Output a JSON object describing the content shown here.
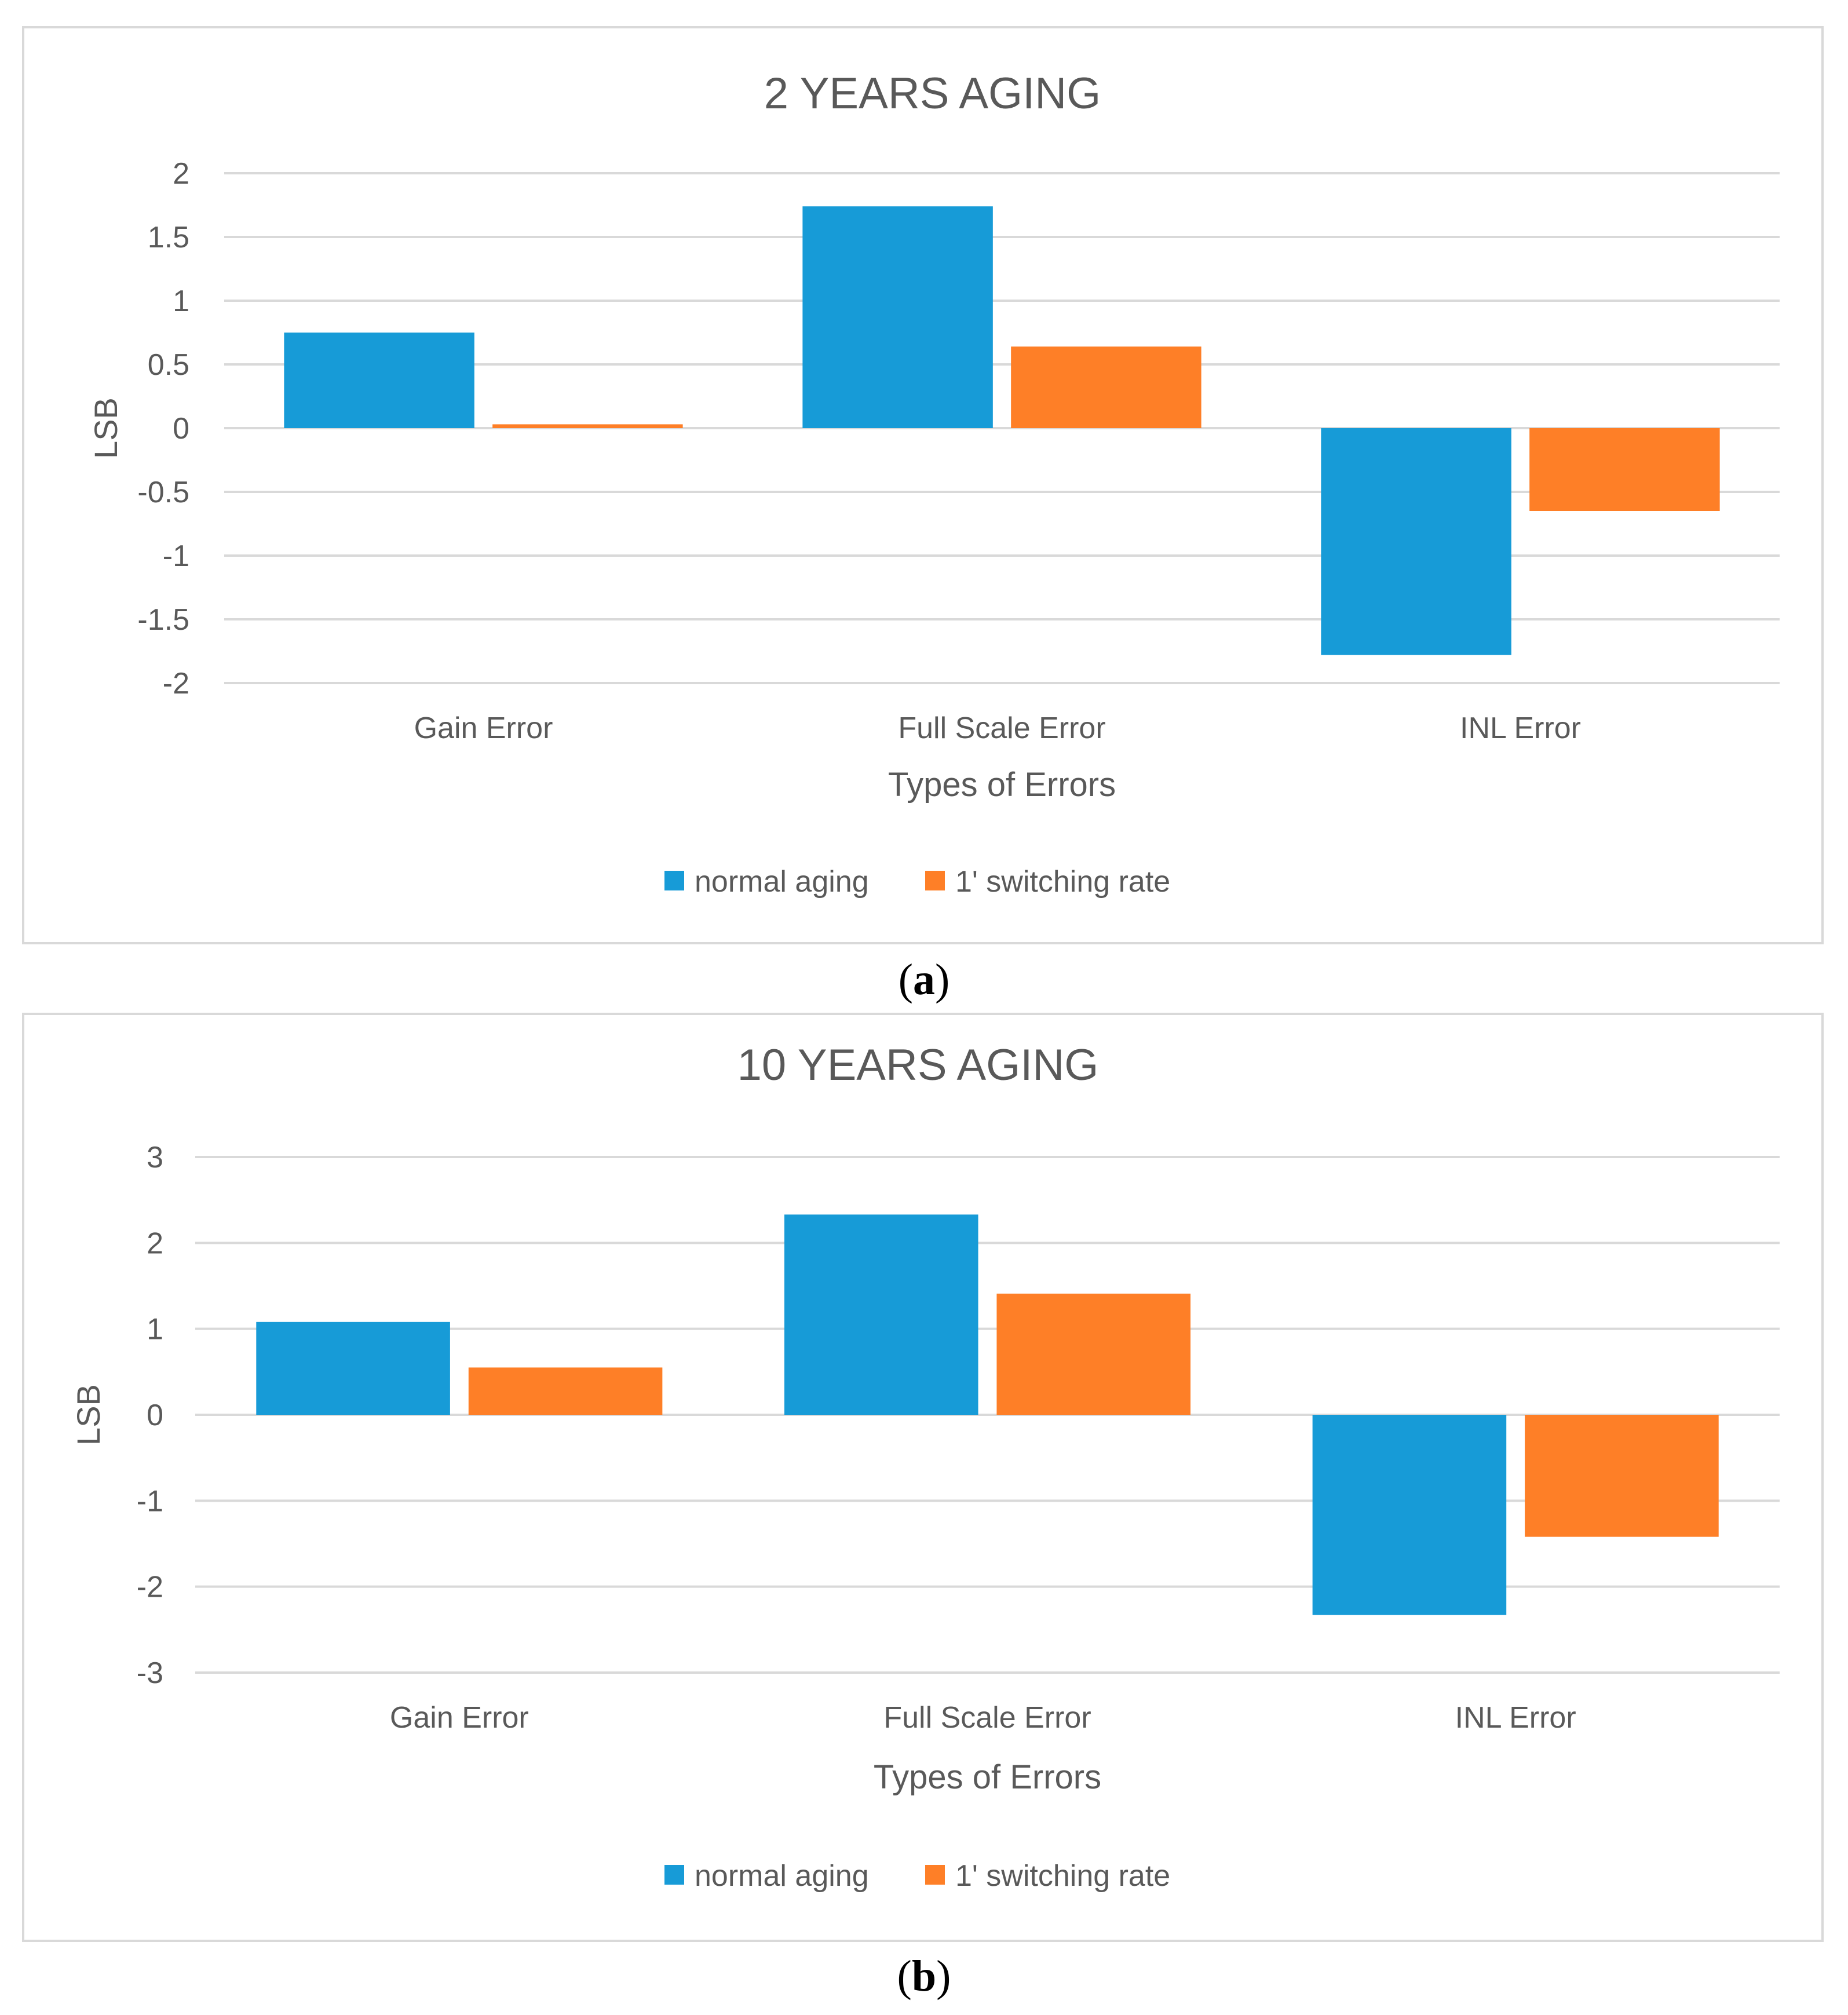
{
  "colors": {
    "normal_aging": "#179bd7",
    "switching_rate": "#fe7f27",
    "grid": "#d9d9d9",
    "text": "#595959"
  },
  "captions": {
    "a": "a",
    "b": "b"
  },
  "chart_data": [
    {
      "type": "bar",
      "title": "2 YEARS AGING",
      "xlabel": "Types of Errors",
      "ylabel": "LSB",
      "ylim": [
        -2,
        2
      ],
      "yticks": [
        2,
        1.5,
        1,
        0.5,
        0,
        -0.5,
        -1,
        -1.5,
        -2
      ],
      "ytick_labels": [
        "2",
        "1.5",
        "1",
        "0.5",
        "0",
        "-0.5",
        "-1",
        "-1.5",
        "-2"
      ],
      "categories": [
        "Gain Error",
        "Full Scale Error",
        "INL Error"
      ],
      "series": [
        {
          "name": "normal aging",
          "values": [
            0.75,
            1.74,
            -1.78
          ]
        },
        {
          "name": "1' switching rate",
          "values": [
            0.03,
            0.64,
            -0.65
          ]
        }
      ],
      "grid": true,
      "legend": "bottom"
    },
    {
      "type": "bar",
      "title": "10 YEARS AGING",
      "xlabel": "Types of Errors",
      "ylabel": "LSB",
      "ylim": [
        -3,
        3
      ],
      "yticks": [
        3,
        2,
        1,
        0,
        -1,
        -2,
        -3
      ],
      "ytick_labels": [
        "3",
        "2",
        "1",
        "0",
        "-1",
        "-2",
        "-3"
      ],
      "categories": [
        "Gain Error",
        "Full Scale Error",
        "INL Error"
      ],
      "series": [
        {
          "name": "normal aging",
          "values": [
            1.08,
            2.33,
            -2.33
          ]
        },
        {
          "name": "1' switching rate",
          "values": [
            0.55,
            1.41,
            -1.42
          ]
        }
      ],
      "grid": true,
      "legend": "bottom"
    }
  ]
}
